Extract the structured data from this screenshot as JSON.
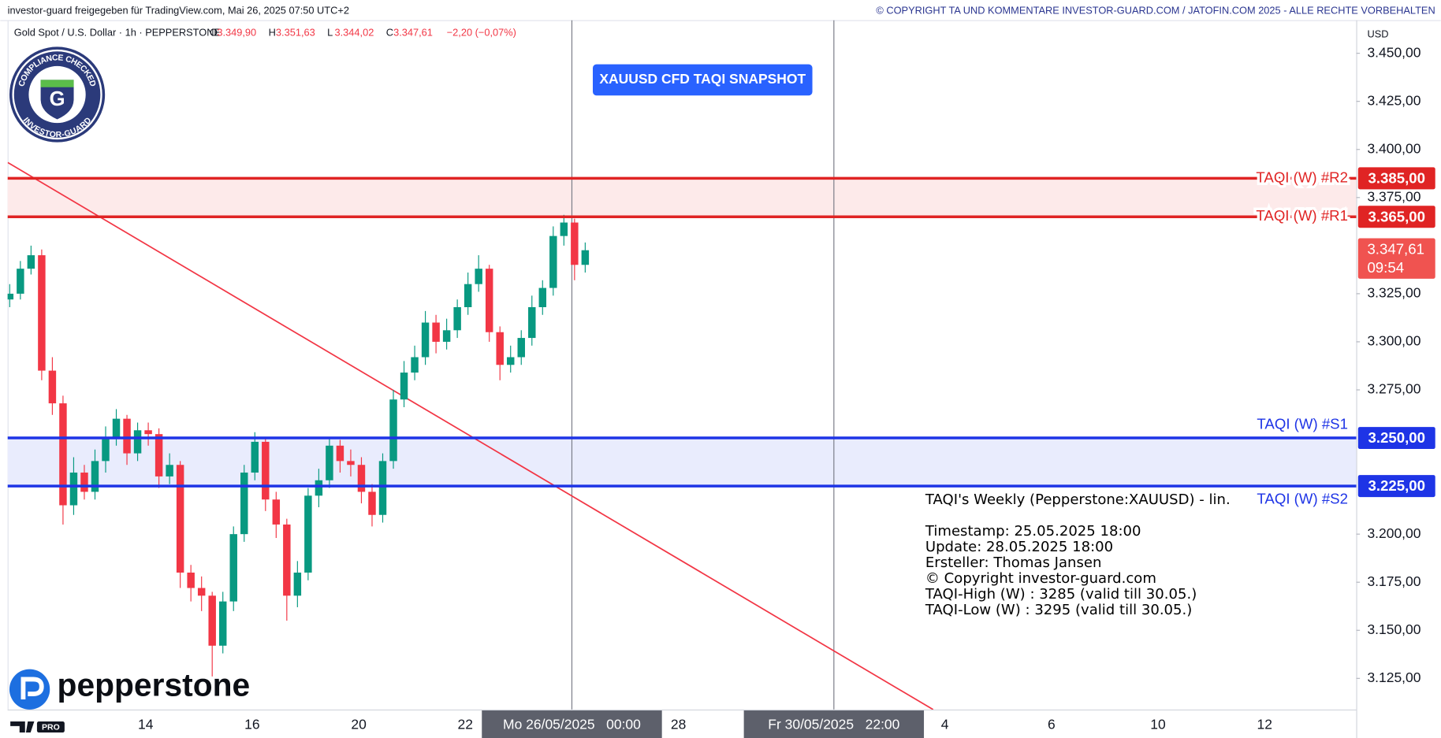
{
  "header": {
    "left": "investor-guard freigegeben für TradingView.com, Mai 26, 2025 07:50 UTC+2",
    "right": "© COPYRIGHT TA UND KOMMENTARE INVESTOR-GUARD.COM / JATOFIN.COM 2025 - ALLE RECHTE VORBEHALTEN"
  },
  "badge": {
    "top": "COMPLIANCE CHECKED",
    "bottom": "INVESTOR-GUARD",
    "letter": "G"
  },
  "brand": "pepperstone",
  "platform_badge": "PRO",
  "chart_data": {
    "type": "candlestick",
    "symbol": "Gold Spot / U.S. Dollar · 1h · PEPPERSTONE",
    "ohlc_legend": [
      {
        "key": "O",
        "value": "3.349,90"
      },
      {
        "key": "H",
        "value": "3.351,63"
      },
      {
        "key": "L",
        "value": "3.344,02"
      },
      {
        "key": "C",
        "value": "3.347,61"
      }
    ],
    "change": "−2,20 (−0,07%)",
    "y_unit": "USD",
    "title": "XAUUSD CFD TAQI SNAPSHOT",
    "up_color": "#089981",
    "down_color": "#f23645",
    "x": [
      -2.55,
      -2.35,
      -2.15,
      -1.95,
      -1.75,
      -1.55,
      -1.35,
      -1.15,
      -0.95,
      -0.75,
      -0.55,
      -0.35,
      -0.15,
      0.05,
      0.25,
      0.45,
      0.65,
      0.85,
      1.05,
      1.25,
      1.45,
      1.65,
      1.85,
      2.05,
      2.25,
      2.45,
      2.65,
      2.85,
      3.05,
      3.25,
      3.45,
      3.65,
      3.85,
      4.05,
      4.25,
      4.45,
      4.65,
      4.85,
      5.05,
      5.25,
      5.45,
      5.65,
      5.85,
      6.05,
      6.25,
      6.45,
      6.65,
      6.85,
      7.05,
      7.25,
      7.45,
      7.65,
      7.85,
      8.05,
      8.25
    ],
    "open": [
      3322,
      3325,
      3338,
      3345,
      3285,
      3268,
      3215,
      3232,
      3222,
      3238,
      3250,
      3260,
      3242,
      3254,
      3252,
      3230,
      3236,
      3180,
      3172,
      3168,
      3142,
      3165,
      3200,
      3232,
      3248,
      3218,
      3205,
      3168,
      3180,
      3220,
      3228,
      3246,
      3238,
      3236,
      3222,
      3210,
      3238,
      3270,
      3284,
      3292,
      3310,
      3300,
      3306,
      3318,
      3330,
      3338,
      3305,
      3288,
      3292,
      3302,
      3318,
      3328,
      3355,
      3362,
      3340
    ],
    "high": [
      3330,
      3342,
      3350,
      3348,
      3292,
      3272,
      3240,
      3236,
      3244,
      3256,
      3265,
      3262,
      3258,
      3258,
      3255,
      3242,
      3238,
      3184,
      3178,
      3170,
      3170,
      3204,
      3236,
      3253,
      3250,
      3222,
      3208,
      3186,
      3224,
      3234,
      3250,
      3249,
      3244,
      3240,
      3226,
      3242,
      3275,
      3290,
      3298,
      3316,
      3314,
      3312,
      3322,
      3336,
      3345,
      3340,
      3308,
      3298,
      3306,
      3324,
      3332,
      3360,
      3366,
      3364,
      3351.63
    ],
    "low": [
      3318,
      3322,
      3335,
      3280,
      3262,
      3205,
      3210,
      3218,
      3218,
      3232,
      3246,
      3236,
      3238,
      3246,
      3224,
      3226,
      3172,
      3165,
      3160,
      3126,
      3138,
      3160,
      3196,
      3228,
      3212,
      3198,
      3155,
      3162,
      3176,
      3214,
      3224,
      3232,
      3230,
      3216,
      3204,
      3206,
      3234,
      3266,
      3280,
      3288,
      3294,
      3296,
      3302,
      3314,
      3326,
      3300,
      3280,
      3284,
      3288,
      3298,
      3314,
      3324,
      3350,
      3332,
      3336
    ],
    "close": [
      3325,
      3338,
      3345,
      3285,
      3268,
      3215,
      3232,
      3222,
      3238,
      3250,
      3260,
      3242,
      3254,
      3252,
      3230,
      3236,
      3180,
      3172,
      3168,
      3142,
      3165,
      3200,
      3232,
      3248,
      3218,
      3205,
      3168,
      3180,
      3220,
      3228,
      3246,
      3238,
      3236,
      3222,
      3210,
      3238,
      3270,
      3284,
      3292,
      3310,
      3300,
      3306,
      3318,
      3330,
      3338,
      3305,
      3288,
      3292,
      3302,
      3318,
      3328,
      3355,
      3362,
      3340,
      3347.61
    ],
    "xlim": [
      -2.59,
      22.72
    ],
    "xticks": [
      {
        "value": 0,
        "label": "14"
      },
      {
        "value": 2,
        "label": "16"
      },
      {
        "value": 4,
        "label": "20"
      },
      {
        "value": 6,
        "label": "22"
      },
      {
        "value": 8,
        "label": "Mo 26/05/2025   00:00"
      },
      {
        "value": 10,
        "label": "28"
      },
      {
        "value": 12.917,
        "label": "Fr 30/05/2025   22:00"
      },
      {
        "value": 15,
        "label": "4"
      },
      {
        "value": 17,
        "label": "6"
      },
      {
        "value": 19,
        "label": "10"
      },
      {
        "value": 21,
        "label": "12"
      }
    ],
    "vlines": [
      8,
      12.917
    ],
    "ylim": [
      3108.8,
      3467.2
    ],
    "yticks": [
      {
        "value": 3125,
        "label": "3.125,00"
      },
      {
        "value": 3150,
        "label": "3.150,00"
      },
      {
        "value": 3175,
        "label": "3.175,00"
      },
      {
        "value": 3200,
        "label": "3.200,00"
      },
      {
        "value": 3275,
        "label": "3.275,00"
      },
      {
        "value": 3300,
        "label": "3.300,00"
      },
      {
        "value": 3325,
        "label": "3.325,00"
      },
      {
        "value": 3375,
        "label": "3.375,00"
      },
      {
        "value": 3400,
        "label": "3.400,00"
      },
      {
        "value": 3425,
        "label": "3.425,00"
      },
      {
        "value": 3450,
        "label": "3.450,00"
      }
    ],
    "zones": [
      {
        "from": 3365,
        "to": 3385,
        "color": "#fdeaea"
      },
      {
        "from": 3225,
        "to": 3250,
        "color": "#e9ecfd"
      }
    ],
    "levels": [
      {
        "name": "TAQI (W) #R2",
        "value": 3385,
        "value_label": "3.385,00",
        "color": "#e02424",
        "label_position": "on"
      },
      {
        "name": "TAQI (W) #R1",
        "value": 3365,
        "value_label": "3.365,00",
        "color": "#e02424",
        "label_position": "on"
      },
      {
        "name": "TAQI (W) #S1",
        "value": 3250,
        "value_label": "3.250,00",
        "color": "#1e34e6",
        "label_position": "above"
      },
      {
        "name": "TAQI (W) #S2",
        "value": 3225,
        "value_label": "3.225,00",
        "color": "#1e34e6",
        "label_position": "below"
      }
    ],
    "trendline": {
      "x": [
        -2.586,
        14.78
      ],
      "y": [
        3393.2,
        3108.8
      ],
      "color": "#f23645"
    },
    "current_price": {
      "value": 3347.61,
      "label": "3.347,61",
      "countdown": "09:54",
      "color": "#f05350"
    },
    "notes": [
      "TAQI's Weekly (Pepperstone:XAUUSD) - lin.",
      "Timestamp: 25.05.2025 18:00",
      "Update: 28.05.2025 18:00",
      "Ersteller: Thomas Jansen",
      "© Copyright investor-guard.com",
      "TAQI-High (W) : 3285 (valid till 30.05.)",
      "TAQI-Low (W) : 3295 (valid till 30.05.)"
    ]
  }
}
